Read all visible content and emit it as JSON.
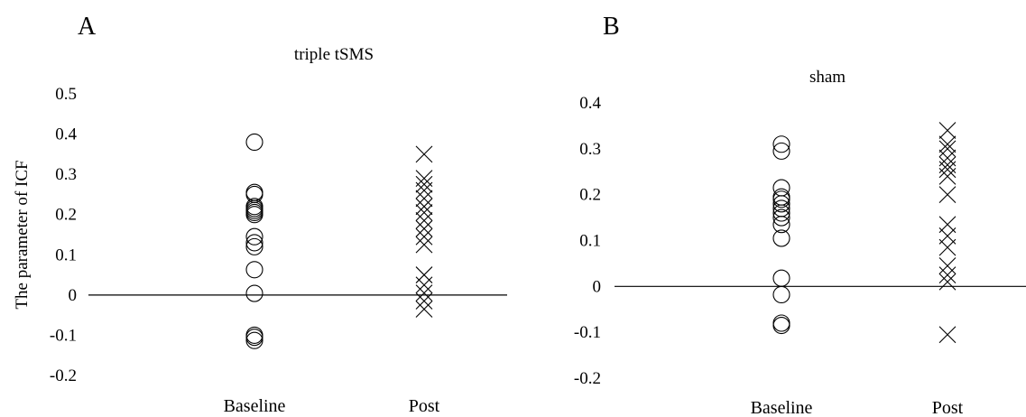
{
  "chart_data": [
    {
      "type": "scatter",
      "panel_label": "A",
      "title": "triple tSMS",
      "ylabel": "The parameter of ICF",
      "xlabel": "",
      "categories": [
        "Baseline",
        "Post"
      ],
      "ylim": [
        -0.2,
        0.5
      ],
      "yticks": [
        -0.2,
        -0.1,
        0,
        0.1,
        0.2,
        0.3,
        0.4,
        0.5
      ],
      "ytick_labels": [
        "-0.2",
        "-0.1",
        "0",
        "0.1",
        "0.2",
        "0.3",
        "0.4",
        "0.5"
      ],
      "grid": false,
      "legend": "none",
      "zero_line": true,
      "series": [
        {
          "marker": "circle",
          "category": "Baseline",
          "values": [
            0.38,
            0.255,
            0.25,
            0.22,
            0.215,
            0.21,
            0.205,
            0.2,
            0.145,
            0.13,
            0.12,
            0.063,
            0.004,
            -0.1,
            -0.105,
            -0.113
          ]
        },
        {
          "marker": "x",
          "category": "Post",
          "values": [
            0.35,
            0.29,
            0.275,
            0.26,
            0.24,
            0.22,
            0.205,
            0.185,
            0.165,
            0.145,
            0.125,
            0.05,
            0.025,
            0.005,
            -0.015,
            -0.035
          ]
        }
      ]
    },
    {
      "type": "scatter",
      "panel_label": "B",
      "title": "sham",
      "ylabel": "",
      "xlabel": "",
      "categories": [
        "Baseline",
        "Post"
      ],
      "ylim": [
        -0.2,
        0.4
      ],
      "yticks": [
        -0.2,
        -0.1,
        0,
        0.1,
        0.2,
        0.3,
        0.4
      ],
      "ytick_labels": [
        "-0.2",
        "-0.1",
        "0",
        "0.1",
        "0.2",
        "0.3",
        "0.4"
      ],
      "grid": false,
      "legend": "none",
      "zero_line": true,
      "series": [
        {
          "marker": "circle",
          "category": "Baseline",
          "values": [
            0.31,
            0.295,
            0.215,
            0.195,
            0.19,
            0.18,
            0.17,
            0.16,
            0.15,
            0.135,
            0.105,
            0.018,
            -0.018,
            -0.08,
            -0.085
          ]
        },
        {
          "marker": "x",
          "category": "Post",
          "values": [
            0.34,
            0.31,
            0.3,
            0.28,
            0.265,
            0.255,
            0.24,
            0.2,
            0.135,
            0.11,
            0.085,
            0.045,
            0.025,
            0.01,
            -0.105
          ]
        }
      ]
    }
  ]
}
